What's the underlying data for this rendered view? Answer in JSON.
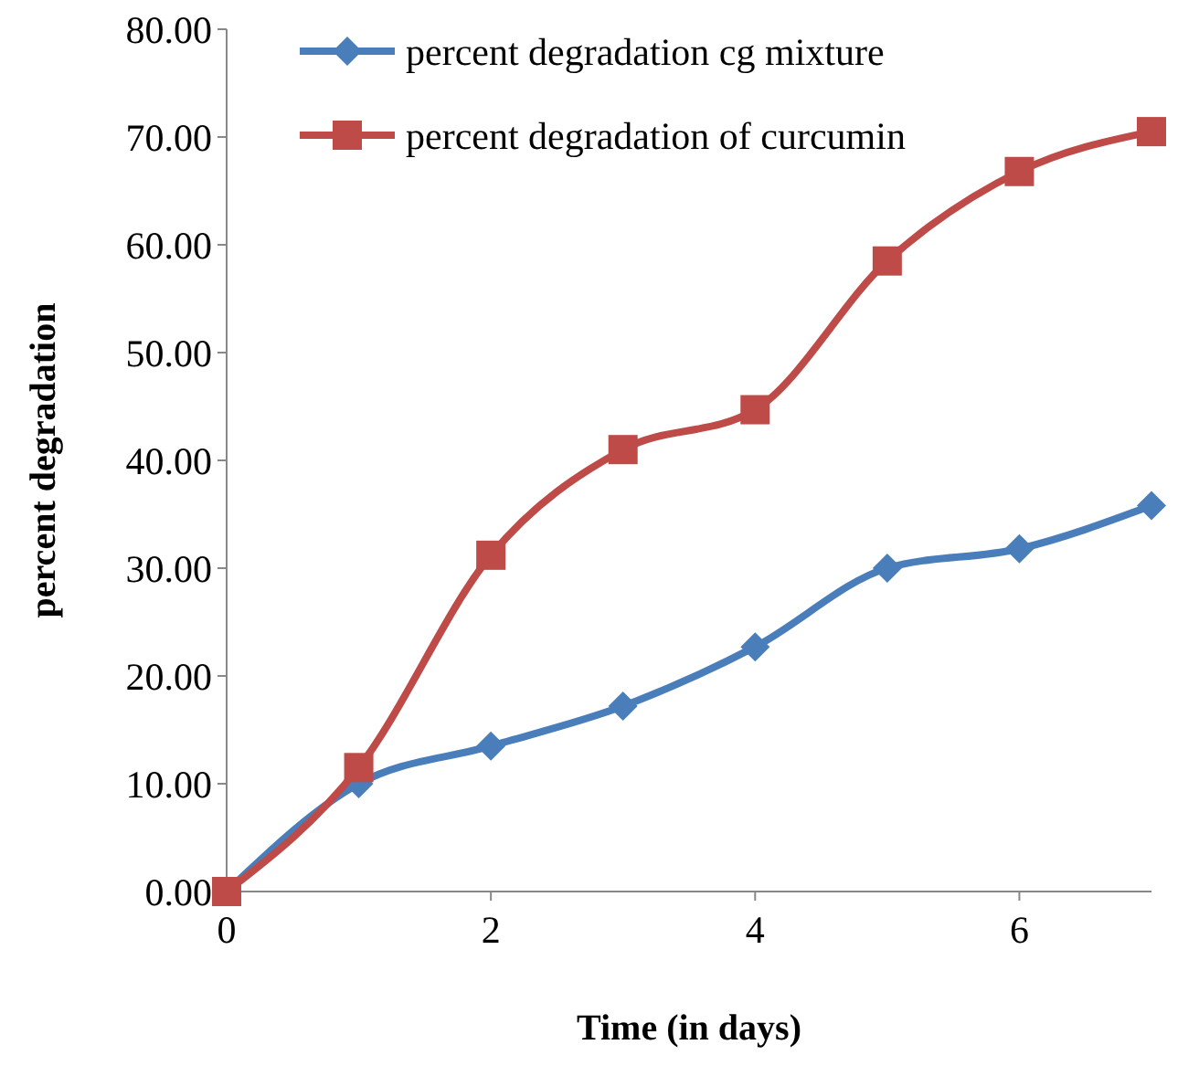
{
  "chart_data": {
    "type": "line",
    "xlabel": "Time (in days)",
    "ylabel": "percent degradation",
    "x": [
      0,
      1,
      2,
      3,
      4,
      5,
      6,
      7
    ],
    "series": [
      {
        "name": "percent degradation cg mixture",
        "color": "#4a7ebb",
        "marker": "diamond",
        "values": [
          0,
          10.0,
          13.5,
          17.2,
          22.7,
          30.0,
          31.8,
          35.8
        ]
      },
      {
        "name": "percent degradation of curcumin",
        "color": "#be4b48",
        "marker": "square",
        "values": [
          0,
          11.5,
          31.2,
          41.0,
          44.7,
          58.5,
          66.8,
          70.5
        ]
      }
    ],
    "xlim": [
      0,
      7
    ],
    "xticks": [
      0,
      2,
      4,
      6
    ],
    "ylim": [
      0,
      80
    ],
    "yticks": [
      {
        "value": 0,
        "label": "0.00"
      },
      {
        "value": 10,
        "label": "10.00"
      },
      {
        "value": 20,
        "label": "20.00"
      },
      {
        "value": 30,
        "label": "30.00"
      },
      {
        "value": 40,
        "label": "40.00"
      },
      {
        "value": 50,
        "label": "50.00"
      },
      {
        "value": 60,
        "label": "60.00"
      },
      {
        "value": 70,
        "label": "70.00"
      },
      {
        "value": 80,
        "label": "80.00"
      }
    ],
    "grid": false,
    "legend": "top"
  }
}
